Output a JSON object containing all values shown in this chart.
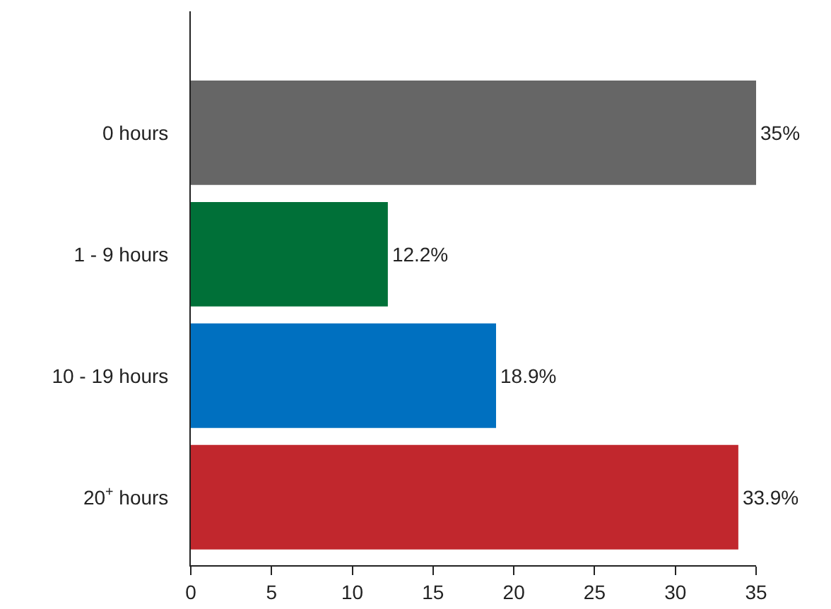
{
  "chart_data": {
    "type": "bar",
    "orientation": "horizontal",
    "categories": [
      "0 hours",
      "1 - 9 hours",
      "10 - 19 hours",
      "20$^{+}$ hours"
    ],
    "values": [
      35,
      12.2,
      18.9,
      33.9
    ],
    "colors": [
      "#666666",
      "#007038",
      "#0070c0",
      "#c1272d"
    ],
    "value_labels": [
      "35%",
      "12.2%",
      "18.9%",
      "33.9%"
    ],
    "xlim": [
      0,
      35
    ],
    "xticks": [
      0,
      5,
      10,
      15,
      20,
      25,
      30,
      35
    ]
  }
}
